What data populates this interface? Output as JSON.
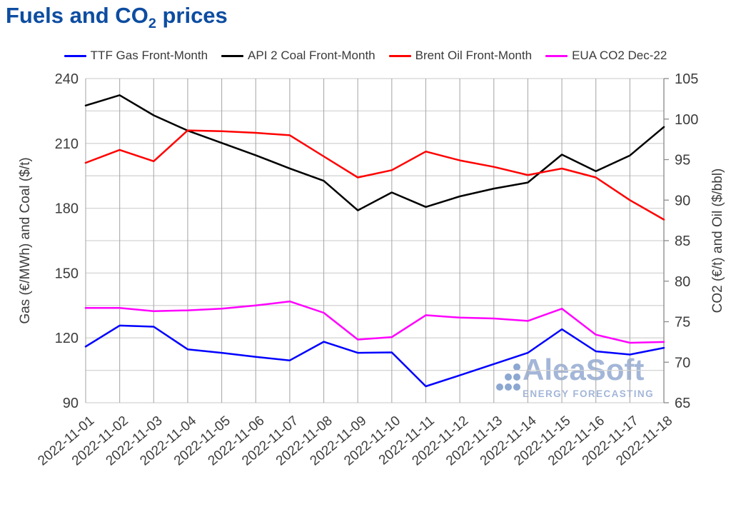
{
  "header": {
    "title_pre": "Fuels and CO",
    "title_sub": "2",
    "title_post": " prices"
  },
  "watermark": {
    "brand": "AleaSoft",
    "tagline": "ENERGY FORECASTING"
  },
  "colors": {
    "title": "#0d4da1",
    "grid_horizontal": "#d4d4d4",
    "grid_vertical": "#ababab",
    "right_axis": "#8c8c8c",
    "tick_text": "#3c3c3c",
    "watermark": "#a3b6d8",
    "watermark_dots": "#8ca7d0"
  },
  "chart_data": {
    "type": "line",
    "title": "Fuels and CO2 prices",
    "legend_position": "top",
    "grid": true,
    "x": [
      "2022-11-01",
      "2022-11-02",
      "2022-11-03",
      "2022-11-04",
      "2022-11-05",
      "2022-11-06",
      "2022-11-07",
      "2022-11-08",
      "2022-11-09",
      "2022-11-10",
      "2022-11-11",
      "2022-11-12",
      "2022-11-13",
      "2022-11-14",
      "2022-11-15",
      "2022-11-16",
      "2022-11-17",
      "2022-11-18"
    ],
    "left_axis": {
      "label": "Gas (€/MWh) and Coal ($/t)",
      "min": 90,
      "max": 240,
      "tick_labels": [
        240,
        210,
        180,
        150,
        120,
        90
      ],
      "grid_step": 15
    },
    "right_axis": {
      "label": "CO2 (€/t) and Oil ($/bbl)",
      "min": 65,
      "max": 105,
      "tick_labels": [
        105,
        100,
        95,
        90,
        85,
        80,
        75,
        70,
        65
      ]
    },
    "series": [
      {
        "name": "TTF Gas Front-Month",
        "axis": "left",
        "color": "#0000ff",
        "values": [
          116.0,
          125.7,
          125.2,
          114.7,
          113.1,
          111.2,
          109.6,
          118.2,
          113.1,
          113.3,
          97.6,
          102.7,
          107.9,
          113.1,
          124.0,
          113.8,
          112.3,
          115.4
        ]
      },
      {
        "name": "API 2 Coal Front-Month",
        "axis": "left",
        "color": "#000000",
        "values": [
          227.5,
          232.3,
          223.0,
          215.9,
          210.2,
          204.5,
          198.4,
          192.7,
          179.0,
          187.3,
          180.6,
          185.5,
          189.1,
          191.9,
          204.8,
          197.1,
          204.4,
          217.6
        ]
      },
      {
        "name": "Brent Oil Front-Month",
        "axis": "right",
        "color": "#ff0000",
        "values": [
          94.6,
          96.2,
          94.8,
          98.6,
          98.5,
          98.3,
          98.0,
          95.4,
          92.8,
          93.7,
          96.0,
          94.9,
          94.1,
          93.1,
          93.9,
          92.8,
          90.0,
          87.6
        ]
      },
      {
        "name": "EUA CO2 Dec-22",
        "axis": "right",
        "color": "#ff00ff",
        "values": [
          76.7,
          76.7,
          76.3,
          76.4,
          76.6,
          77.0,
          77.5,
          76.1,
          72.8,
          73.1,
          75.8,
          75.5,
          75.4,
          75.1,
          76.6,
          73.4,
          72.4,
          72.5
        ]
      }
    ]
  }
}
